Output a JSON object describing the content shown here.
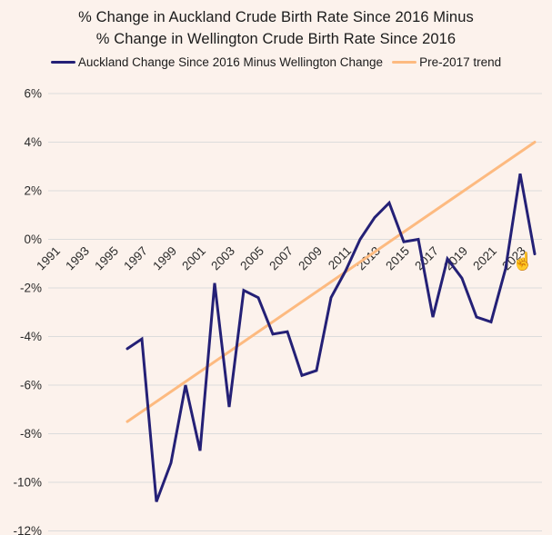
{
  "title": {
    "line1": "% Change in Auckland Crude Birth Rate Since 2016 Minus",
    "line2": "% Change in Wellington Crude Birth Rate Since 2016"
  },
  "legend": {
    "items": [
      {
        "label": "Auckland Change Since 2016 Minus Wellington Change",
        "color": "#242076"
      },
      {
        "label": "Pre-2017 trend",
        "color": "#fdba80"
      }
    ]
  },
  "colors": {
    "background": "#fcf2ec",
    "gridline": "#dcdcdc",
    "text": "#1b1b1b",
    "primary_line": "#242076",
    "trend_line": "#fdba80"
  },
  "cursor": {
    "glyph": "☝"
  },
  "chart_data": {
    "type": "line",
    "title": "% Change in Auckland Crude Birth Rate Since 2016 Minus % Change in Wellington Crude Birth Rate Since 2016",
    "xlabel": "",
    "ylabel": "",
    "grid": "horizontal",
    "legend_position": "top",
    "xlim": [
      1990.7,
      2024.5
    ],
    "ylim": [
      -12,
      6
    ],
    "x_ticks": [
      1991,
      1993,
      1995,
      1997,
      1999,
      2001,
      2003,
      2005,
      2007,
      2009,
      2011,
      2013,
      2015,
      2017,
      2019,
      2021,
      2023
    ],
    "y_ticks": [
      6,
      4,
      2,
      0,
      -2,
      -4,
      -6,
      -8,
      -10,
      -12
    ],
    "y_tick_suffix": "%",
    "series": [
      {
        "name": "Auckland Change Since 2016 Minus Wellington Change",
        "color": "#242076",
        "x": [
          1996,
          1997,
          1998,
          1999,
          2000,
          2001,
          2002,
          2003,
          2004,
          2005,
          2006,
          2007,
          2008,
          2009,
          2010,
          2011,
          2012,
          2013,
          2014,
          2015,
          2016,
          2017,
          2018,
          2019,
          2020,
          2021,
          2022,
          2023,
          2024
        ],
        "values": [
          -4.5,
          -4.1,
          -10.8,
          -9.2,
          -6.0,
          -8.7,
          -1.8,
          -6.9,
          -2.1,
          -2.4,
          -3.9,
          -3.8,
          -5.6,
          -5.4,
          -2.4,
          -1.3,
          0.0,
          0.9,
          1.5,
          -0.1,
          0.0,
          -3.2,
          -0.8,
          -1.6,
          -3.2,
          -3.4,
          -1.2,
          2.7,
          -0.6
        ]
      },
      {
        "name": "Pre-2017 trend",
        "color": "#fdba80",
        "x": [
          1996,
          2024
        ],
        "values": [
          -7.5,
          4.0
        ]
      }
    ]
  }
}
